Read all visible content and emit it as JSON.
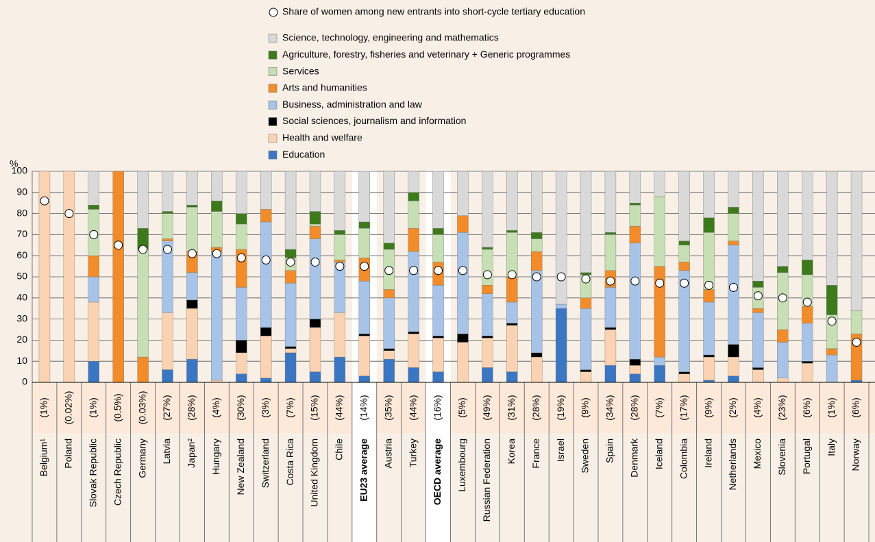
{
  "chart_data": {
    "type": "stacked_bar",
    "y_label": "%",
    "ylim": [
      0,
      100
    ],
    "yticks": [
      0,
      10,
      20,
      30,
      40,
      50,
      60,
      70,
      80,
      90,
      100
    ],
    "grid": true,
    "categories": [
      "Belgium¹",
      "Poland",
      "Slovak Republic",
      "Czech Republic",
      "Germany",
      "Latvia",
      "Japan²",
      "Hungary",
      "New Zealand",
      "Switzerland",
      "Costa Rica",
      "United Kingdom",
      "Chile",
      "EU23 average",
      "Austria",
      "Turkey",
      "OECD average",
      "Luxembourg",
      "Russian Federation",
      "Korea",
      "France",
      "Israel",
      "Sweden",
      "Spain",
      "Denmark",
      "Iceland",
      "Colombia",
      "Ireland",
      "Netherlands",
      "Mexico",
      "Slovenia",
      "Portugal",
      "Italy",
      "Norway"
    ],
    "shares": [
      "(1%)",
      "(0.02%)",
      "(1%)",
      "(0.5%)",
      "(0.03%)",
      "(27%)",
      "(28%)",
      "(4%)",
      "(30%)",
      "(3%)",
      "(7%)",
      "(15%)",
      "(44%)",
      "(14%)",
      "(35%)",
      "(44%)",
      "(16%)",
      "(5%)",
      "(49%)",
      "(31%)",
      "(28%)",
      "(19%)",
      "(9%)",
      "(34%)",
      "(28%)",
      "(7%)",
      "(17%)",
      "(9%)",
      "(2%)",
      "(4%)",
      "(23%)",
      "(6%)",
      "(1%)",
      "(6%)"
    ],
    "highlight_index": [
      13,
      16
    ],
    "series": [
      {
        "name": "Education",
        "color": "#3b76c3",
        "values": [
          0,
          0,
          10,
          0,
          0,
          6,
          11,
          0,
          4,
          2,
          14,
          5,
          12,
          3,
          11,
          7,
          5,
          0,
          7,
          5,
          0,
          35,
          0,
          8,
          4,
          8,
          0,
          1,
          3,
          0,
          0,
          0,
          0,
          1
        ]
      },
      {
        "name": "Health and welfare",
        "color": "#fcd3b2",
        "values": [
          100,
          100,
          28,
          0,
          0,
          27,
          24,
          1,
          10,
          20,
          2,
          21,
          21,
          19,
          4,
          16,
          16,
          19,
          14,
          22,
          12,
          0,
          5,
          17,
          4,
          0,
          4,
          11,
          9,
          6,
          2,
          9,
          0,
          0
        ]
      },
      {
        "name": "Social sciences, journalism and information",
        "color": "#000000",
        "values": [
          0,
          0,
          0,
          0,
          0,
          0,
          4,
          0,
          6,
          4,
          1,
          4,
          0,
          1,
          1,
          1,
          1,
          4,
          1,
          1,
          2,
          0,
          1,
          1,
          3,
          0,
          1,
          1,
          6,
          1,
          0,
          1,
          0,
          0
        ]
      },
      {
        "name": "Business, administration and law",
        "color": "#a7c3e7",
        "values": [
          0,
          0,
          12,
          0,
          0,
          34,
          13,
          61,
          25,
          50,
          30,
          38,
          24,
          25,
          24,
          38,
          24,
          48,
          20,
          10,
          39,
          2,
          29,
          19,
          55,
          4,
          48,
          25,
          47,
          26,
          17,
          18,
          13,
          0
        ]
      },
      {
        "name": "Arts and humanities",
        "color": "#f28c2a",
        "values": [
          0,
          0,
          10,
          100,
          12,
          1,
          10,
          2,
          18,
          6,
          6,
          6,
          1,
          11,
          4,
          11,
          11,
          8,
          4,
          12,
          9,
          0,
          5,
          8,
          8,
          43,
          4,
          6,
          2,
          2,
          6,
          8,
          3,
          22
        ]
      },
      {
        "name": "Services",
        "color": "#c6dfb4",
        "values": [
          0,
          0,
          22,
          0,
          51,
          12,
          21,
          17,
          12,
          0,
          6,
          1,
          12,
          14,
          19,
          13,
          13,
          0,
          17,
          21,
          6,
          0,
          11,
          17,
          10,
          33,
          8,
          27,
          13,
          10,
          27,
          15,
          16,
          11
        ]
      },
      {
        "name": "Agriculture, forestry, fisheries and veterinary + Generic programmes",
        "color": "#3d7a1c",
        "values": [
          0,
          0,
          2,
          0,
          10,
          1,
          1,
          5,
          5,
          0,
          4,
          6,
          2,
          3,
          3,
          4,
          3,
          0,
          1,
          1,
          3,
          0,
          1,
          1,
          1,
          0,
          2,
          7,
          3,
          3,
          3,
          7,
          14,
          0
        ]
      },
      {
        "name": "Science, technology, engineering and mathematics",
        "color": "#d9d9d9",
        "values": [
          0,
          0,
          16,
          0,
          27,
          19,
          16,
          14,
          20,
          18,
          37,
          19,
          28,
          24,
          34,
          10,
          27,
          21,
          36,
          28,
          29,
          63,
          48,
          29,
          15,
          12,
          33,
          22,
          17,
          52,
          45,
          42,
          54,
          66
        ]
      }
    ],
    "markers": {
      "name": "Share of women among new entrants into short-cycle tertiary education",
      "color": "#ffffff",
      "values": [
        86,
        80,
        70,
        65,
        63,
        63,
        61,
        61,
        59,
        58,
        57,
        57,
        55,
        55,
        53,
        53,
        53,
        53,
        51,
        51,
        50,
        50,
        49,
        48,
        48,
        47,
        47,
        46,
        45,
        41,
        40,
        38,
        29,
        19
      ]
    }
  }
}
